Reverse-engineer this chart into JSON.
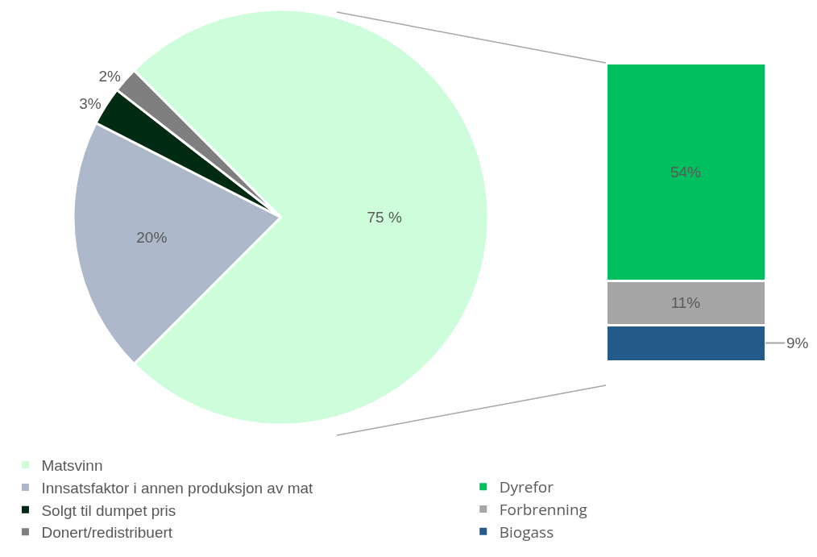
{
  "chart_data": [
    {
      "type": "pie",
      "categories": [
        "Matsvinn",
        "Innsatsfaktor i annen produksjon av mat",
        "Solgt til dumpet pris",
        "Donert/redistribuert"
      ],
      "values": [
        75,
        20,
        3,
        2
      ],
      "value_labels": [
        "75 %",
        "20%",
        "3%",
        "2%"
      ],
      "colors": [
        "#cefddc",
        "#adb9ca",
        "#002b12",
        "#7f7f7f"
      ],
      "legend": "bottom left"
    },
    {
      "type": "bar",
      "stacked": true,
      "categories": [
        null
      ],
      "series": [
        {
          "name": "Biogass",
          "color": "#245a8c",
          "values": [
            9
          ],
          "value_labels": [
            "9%"
          ]
        },
        {
          "name": "Forbrenning",
          "color": "#a6a6a6",
          "values": [
            11
          ],
          "value_labels": [
            "11%"
          ]
        },
        {
          "name": "Dyrefor",
          "color": "#00bf5f",
          "values": [
            54
          ],
          "value_labels": [
            "54%"
          ]
        }
      ],
      "legend": "bottom left"
    }
  ]
}
